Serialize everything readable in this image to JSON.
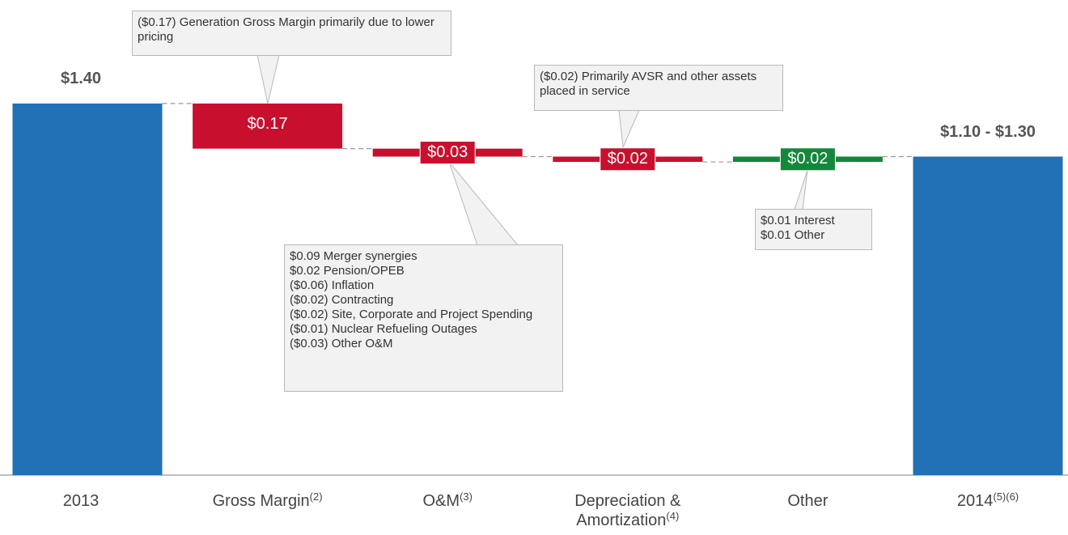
{
  "chart_data": {
    "type": "waterfall",
    "categories": [
      "2013",
      "Gross Margin",
      "O&M",
      "Depreciation & Amortization",
      "Other",
      "2014"
    ],
    "footnotes": [
      null,
      "(2)",
      "(3)",
      "(4)",
      null,
      "(5)(6)"
    ],
    "values": [
      1.4,
      -0.17,
      -0.03,
      -0.02,
      0.02,
      1.2
    ],
    "value_labels": [
      "$1.40",
      "$0.17",
      "$0.03",
      "$0.02",
      "$0.02",
      "$1.10 - $1.30"
    ],
    "totals": [
      true,
      false,
      false,
      false,
      false,
      true
    ],
    "colors": {
      "total": "#2270b5",
      "decrease": "#c8102e",
      "increase": "#13883b"
    },
    "ylim": [
      0,
      1.79
    ],
    "annotations": [
      {
        "text": "($0.17) Generation Gross Margin primarily due to lower pricing"
      },
      {
        "lines": [
          "$0.09 Merger synergies",
          "$0.02 Pension/OPEB",
          "($0.06) Inflation",
          "($0.02) Contracting",
          "($0.02) Site, Corporate and Project Spending",
          "($0.01) Nuclear Refueling Outages",
          "($0.03) Other O&M"
        ]
      },
      {
        "text": "($0.02) Primarily AVSR and other assets placed in service"
      },
      {
        "lines": [
          "$0.01 Interest",
          "$0.01 Other"
        ]
      }
    ]
  }
}
